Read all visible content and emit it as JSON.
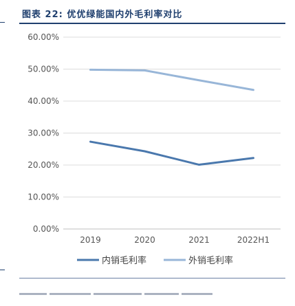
{
  "figure": {
    "title": "图表 22: 优优绿能国内外毛利率对比"
  },
  "colors": {
    "domestic": "#4a78ad",
    "overseas": "#98b6d8",
    "header_rule": "#1f3f6e",
    "grid": "#dcdcdc"
  },
  "chart_data": {
    "type": "line",
    "categories": [
      "2019",
      "2020",
      "2021",
      "2022H1"
    ],
    "x": [
      "2019",
      "2020",
      "2021",
      "2022H1"
    ],
    "series": [
      {
        "name": "内销毛利率",
        "values": [
          27.3,
          24.3,
          20.1,
          22.2
        ]
      },
      {
        "name": "外销毛利率",
        "values": [
          49.8,
          49.6,
          46.5,
          43.5
        ]
      }
    ],
    "ylim": [
      0,
      60
    ],
    "yticks": [
      0,
      10,
      20,
      30,
      40,
      50,
      60
    ],
    "ytick_labels": [
      "0.00%",
      "10.00%",
      "20.00%",
      "30.00%",
      "40.00%",
      "50.00%",
      "60.00%"
    ],
    "grid": true,
    "legend": "bottom"
  }
}
